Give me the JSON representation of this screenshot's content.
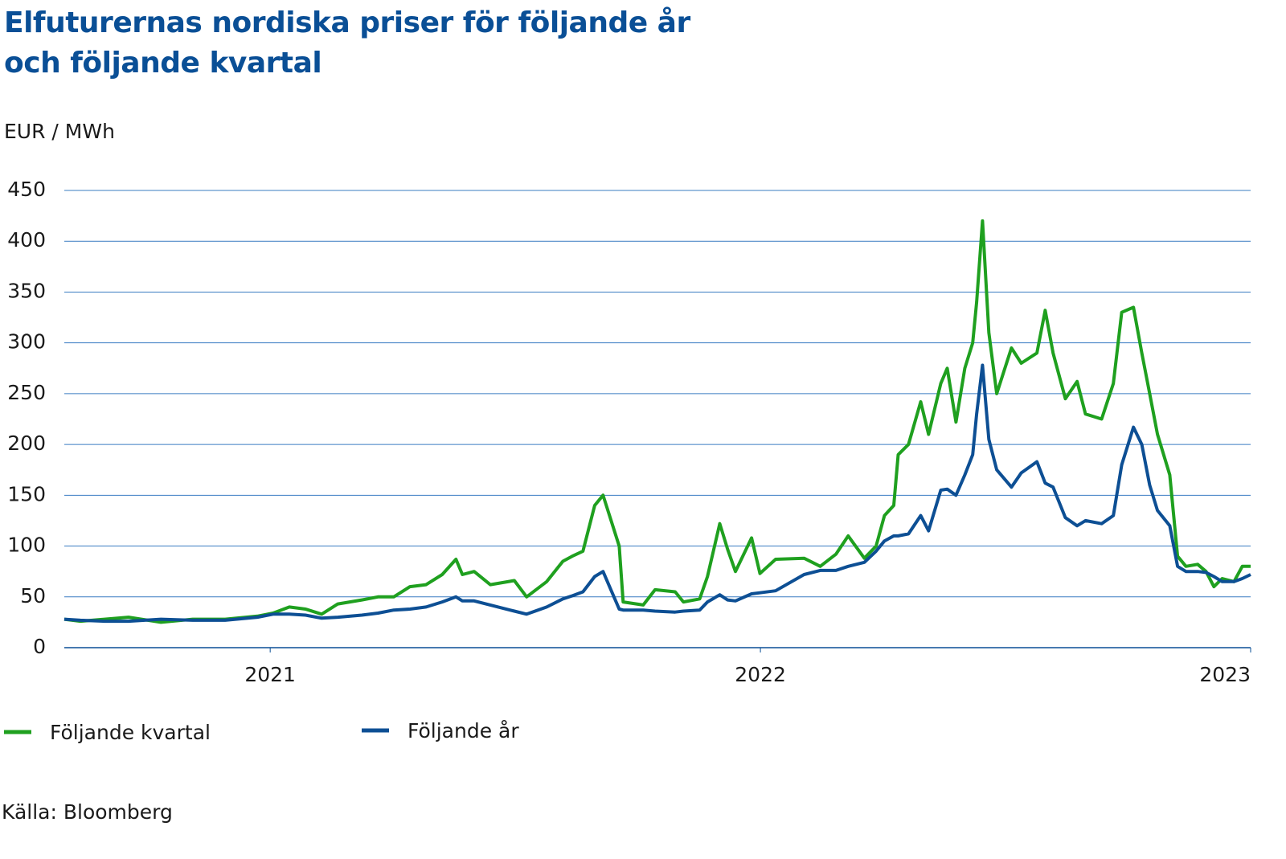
{
  "chart_data": {
    "type": "line",
    "title": "Elfuturernas nordiska priser för följande år och följande kvartal",
    "y_label": "EUR / MWh",
    "source": "Källa: Bloomberg",
    "x": [
      2020.58,
      2020.613,
      2020.662,
      2020.711,
      2020.777,
      2020.842,
      2020.908,
      2020.974,
      2021.006,
      2021.039,
      2021.072,
      2021.105,
      2021.138,
      2021.187,
      2021.22,
      2021.252,
      2021.285,
      2021.318,
      2021.351,
      2021.379,
      2021.392,
      2021.416,
      2021.449,
      2021.498,
      2021.523,
      2021.564,
      2021.597,
      2021.616,
      2021.638,
      2021.662,
      2021.679,
      2021.712,
      2021.72,
      2021.761,
      2021.785,
      2021.826,
      2021.843,
      2021.876,
      2021.892,
      2021.917,
      2021.933,
      2021.949,
      2021.982,
      2021.999,
      2022.031,
      2022.089,
      2022.122,
      2022.154,
      2022.179,
      2022.212,
      2022.236,
      2022.253,
      2022.272,
      2022.281,
      2022.302,
      2022.327,
      2022.343,
      2022.368,
      2022.381,
      2022.399,
      2022.417,
      2022.433,
      2022.441,
      2022.453,
      2022.466,
      2022.482,
      2022.512,
      2022.532,
      2022.564,
      2022.581,
      2022.597,
      2022.622,
      2022.646,
      2022.663,
      2022.696,
      2022.72,
      2022.737,
      2022.761,
      2022.778,
      2022.794,
      2022.81,
      2022.835,
      2022.851,
      2022.868,
      2022.892,
      2022.909,
      2022.925,
      2022.942,
      2022.966,
      2022.983,
      2023
    ],
    "series": [
      {
        "name": "Följande kvartal",
        "color": "#1fa01f",
        "values": [
          28,
          26,
          28,
          30,
          25,
          28,
          28,
          31,
          34,
          40,
          38,
          33,
          43,
          47,
          50,
          50,
          60,
          62,
          72,
          87,
          72,
          75,
          62,
          66,
          50,
          65,
          85,
          90,
          95,
          140,
          150,
          100,
          45,
          42,
          57,
          55,
          45,
          48,
          70,
          122,
          97,
          75,
          108,
          73,
          87,
          88,
          80,
          92,
          110,
          88,
          100,
          130,
          140,
          190,
          200,
          242,
          210,
          260,
          275,
          222,
          275,
          300,
          340,
          420,
          310,
          250,
          295,
          280,
          290,
          332,
          290,
          245,
          262,
          230,
          225,
          260,
          330,
          335,
          290,
          250,
          210,
          170,
          90,
          80,
          82,
          75,
          60,
          68,
          65,
          80,
          80
        ]
      },
      {
        "name": "Följande år",
        "color": "#0d4f94",
        "values": [
          28,
          27,
          26,
          26,
          28,
          27,
          27,
          30,
          33,
          33,
          32,
          29,
          30,
          32,
          34,
          37,
          38,
          40,
          45,
          50,
          46,
          46,
          42,
          36,
          33,
          40,
          48,
          51,
          55,
          70,
          75,
          38,
          37,
          37,
          36,
          35,
          36,
          37,
          45,
          52,
          47,
          46,
          53,
          54,
          56,
          72,
          76,
          76,
          80,
          84,
          95,
          105,
          110,
          110,
          112,
          130,
          115,
          155,
          156,
          150,
          170,
          190,
          230,
          278,
          205,
          175,
          158,
          172,
          183,
          162,
          158,
          128,
          120,
          125,
          122,
          130,
          180,
          217,
          200,
          160,
          135,
          120,
          80,
          75,
          75,
          74,
          70,
          65,
          65,
          68,
          72
        ]
      }
    ],
    "xlim": [
      2020.58,
      2023
    ],
    "xticks": [
      2021,
      2022,
      2023
    ],
    "ylim": [
      0,
      450
    ],
    "yticks": [
      0,
      50,
      100,
      150,
      200,
      250,
      300,
      350,
      400,
      450
    ],
    "grid": true
  }
}
